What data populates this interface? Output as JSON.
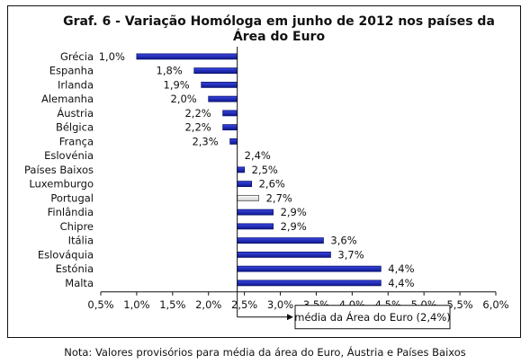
{
  "chart_data": {
    "type": "bar",
    "orientation": "horizontal",
    "title": "Graf. 6 - Variação Homóloga em junho de 2012 nos países da Área do Euro",
    "categories": [
      "Grécia",
      "Espanha",
      "Irlanda",
      "Alemanha",
      "Áustria",
      "Bélgica",
      "França",
      "Eslovénia",
      "Países Baixos",
      "Luxemburgo",
      "Portugal",
      "Finlândia",
      "Chipre",
      "Itália",
      "Eslováquia",
      "Estónia",
      "Malta"
    ],
    "values": [
      1.0,
      1.8,
      1.9,
      2.0,
      2.2,
      2.2,
      2.3,
      2.4,
      2.5,
      2.6,
      2.7,
      2.9,
      2.9,
      3.6,
      3.7,
      4.4,
      4.4
    ],
    "value_labels": [
      "1,0%",
      "1,8%",
      "1,9%",
      "2,0%",
      "2,2%",
      "2,2%",
      "2,3%",
      "2,4%",
      "2,5%",
      "2,6%",
      "2,7%",
      "2,9%",
      "2,9%",
      "3,6%",
      "3,7%",
      "4,4%",
      "4,4%"
    ],
    "baseline": 2.4,
    "highlight_category": "Portugal",
    "xlim": [
      0.5,
      6.0
    ],
    "x_ticks": [
      0.5,
      1.0,
      1.5,
      2.0,
      2.5,
      3.0,
      3.5,
      4.0,
      4.5,
      5.0,
      5.5,
      6.0
    ],
    "x_tick_labels": [
      "0,5%",
      "1,0%",
      "1,5%",
      "2,0%",
      "2,5%",
      "3,0%",
      "3,5%",
      "4,0%",
      "4,5%",
      "5,0%",
      "5,5%",
      "6,0%"
    ],
    "reference_label": "média da Área do Euro (2,4%)",
    "grid": false,
    "colors": {
      "bar": "#2430c8",
      "bar_dark": "#0a1470",
      "highlight": "#e6e6e6",
      "axis": "#111111"
    }
  },
  "footnote": "Nota: Valores provisórios para média da área do Euro, Áustria e Países Baixos"
}
